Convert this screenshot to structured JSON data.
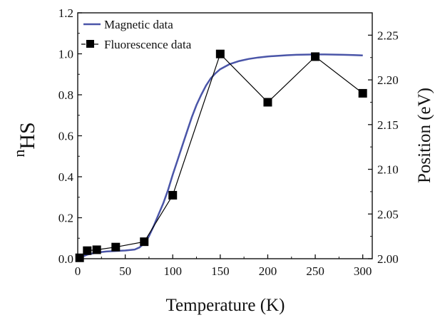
{
  "chart_data": {
    "type": "line",
    "xlabel": "Temperature (K)",
    "ylabel_left": "nHS",
    "ylabel_left_base": "n",
    "ylabel_left_sub": "HS",
    "ylabel_right": "Position (eV)",
    "xlim": [
      0,
      310
    ],
    "ylim_left": [
      0,
      1.2
    ],
    "ylim_right": [
      2.0,
      2.275
    ],
    "x_ticks": [
      "0",
      "50",
      "100",
      "150",
      "200",
      "250",
      "300"
    ],
    "y_left_ticks": [
      "0.0",
      "0.2",
      "0.4",
      "0.6",
      "0.8",
      "1.0",
      "1.2"
    ],
    "y_right_ticks": [
      "2.00",
      "2.05",
      "2.10",
      "2.15",
      "2.20",
      "2.25"
    ],
    "grid": false,
    "legend_position": "top-left",
    "series": [
      {
        "name": "Magnetic data",
        "axis": "left",
        "color": "#4a55a8",
        "x": [
          2,
          10,
          20,
          30,
          40,
          50,
          60,
          65,
          70,
          75,
          80,
          85,
          90,
          95,
          100,
          105,
          110,
          115,
          120,
          125,
          130,
          135,
          140,
          145,
          150,
          160,
          170,
          180,
          190,
          200,
          210,
          220,
          230,
          240,
          250,
          260,
          270,
          280,
          290,
          300
        ],
        "values": [
          0.005,
          0.02,
          0.03,
          0.035,
          0.038,
          0.04,
          0.045,
          0.055,
          0.075,
          0.11,
          0.16,
          0.215,
          0.27,
          0.335,
          0.41,
          0.48,
          0.55,
          0.62,
          0.69,
          0.75,
          0.8,
          0.845,
          0.88,
          0.905,
          0.925,
          0.95,
          0.965,
          0.975,
          0.982,
          0.987,
          0.99,
          0.993,
          0.995,
          0.996,
          0.997,
          0.997,
          0.996,
          0.995,
          0.994,
          0.992
        ]
      },
      {
        "name": "Fluorescence data",
        "axis": "right",
        "color": "#000000",
        "x": [
          2,
          10,
          20,
          40,
          70,
          100,
          150,
          200,
          250,
          300
        ],
        "values": [
          2.001,
          2.009,
          2.01,
          2.013,
          2.019,
          2.071,
          2.229,
          2.175,
          2.226,
          2.185
        ],
        "errors": [
          0,
          0,
          0,
          0.002,
          0.002,
          0.003,
          0.003,
          0.004,
          0.004,
          0.004
        ]
      }
    ]
  }
}
